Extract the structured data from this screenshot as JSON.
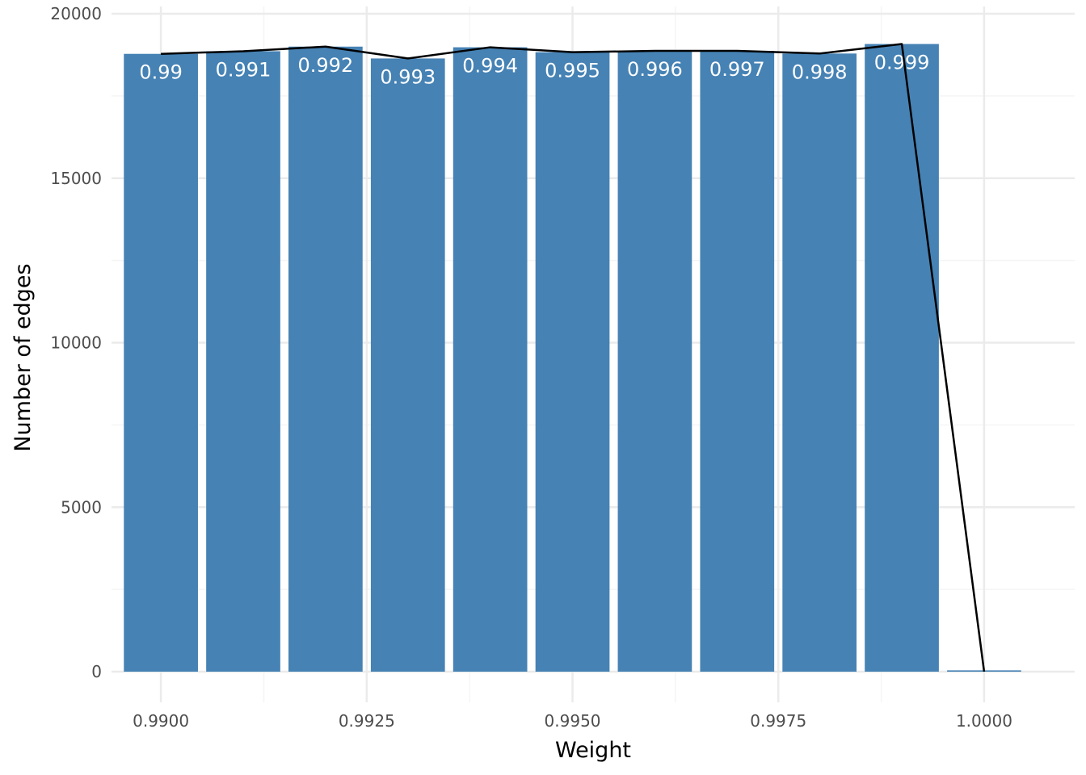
{
  "chart_data": {
    "type": "bar",
    "title": "",
    "xlabel": "Weight",
    "ylabel": "Number of edges",
    "xlim": [
      0.9894,
      1.0011
    ],
    "ylim": [
      0,
      20000
    ],
    "x_ticks": [
      0.99,
      0.9925,
      0.995,
      0.9975,
      1.0
    ],
    "x_tick_labels": [
      "0.9900",
      "0.9925",
      "0.9950",
      "0.9975",
      "1.0000"
    ],
    "x_minor_ticks": [
      0.99125,
      0.99375,
      0.99625,
      0.99875
    ],
    "y_ticks": [
      0,
      5000,
      10000,
      15000,
      20000
    ],
    "y_tick_labels": [
      "0",
      "5000",
      "10000",
      "15000",
      "20000"
    ],
    "y_minor_ticks": [
      2500,
      7500,
      12500,
      17500
    ],
    "bar_width": 0.0009,
    "x": [
      0.99,
      0.991,
      0.992,
      0.993,
      0.994,
      0.995,
      0.996,
      0.997,
      0.998,
      0.999,
      1.0
    ],
    "values": [
      18780,
      18860,
      19000,
      18640,
      18980,
      18830,
      18870,
      18870,
      18790,
      19080,
      40
    ],
    "bar_labels": [
      "0.99",
      "0.991",
      "0.992",
      "0.993",
      "0.994",
      "0.995",
      "0.996",
      "0.997",
      "0.998",
      "0.999",
      ""
    ],
    "line_values": [
      18780,
      18860,
      19000,
      18640,
      18980,
      18830,
      18870,
      18870,
      18790,
      19080,
      0
    ],
    "grid": true,
    "legend": "none",
    "colors": {
      "bar": "#4682B4",
      "line": "#000000",
      "grid_major": "#EBEBEB",
      "grid_minor": "#F5F5F5",
      "bar_label": "#FFFFFF"
    }
  }
}
